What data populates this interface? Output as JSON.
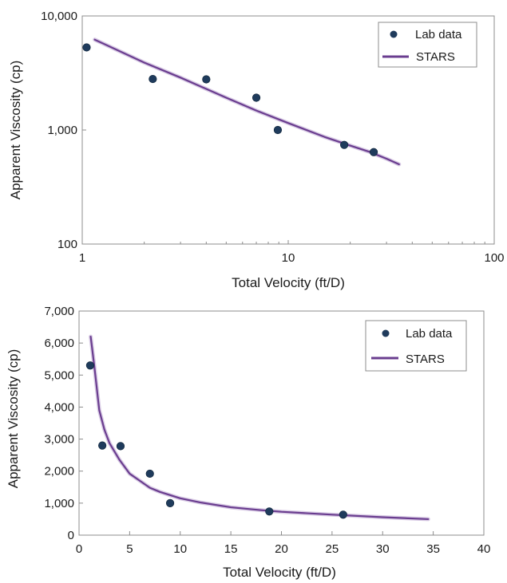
{
  "colors": {
    "axis": "#8c8c8c",
    "text": "#1a1a1a",
    "marker": "#1f3b5c",
    "line": "#6a3d8f"
  },
  "chart_data": [
    {
      "type": "scatter",
      "title": "",
      "xlabel": "Total Velocity (ft/D)",
      "ylabel": "Apparent Viscosity (cp)",
      "xscale": "log",
      "yscale": "log",
      "xlim": [
        1,
        100
      ],
      "ylim": [
        100,
        10000
      ],
      "xticks": [
        1,
        10,
        100
      ],
      "xtick_labels": [
        "1",
        "10",
        "100"
      ],
      "yticks": [
        100,
        1000,
        10000
      ],
      "ytick_labels": [
        "100",
        "1,000",
        "10,000"
      ],
      "grid": false,
      "legend_position": "top-right",
      "series": [
        {
          "name": "Lab data",
          "kind": "markers",
          "x": [
            1.05,
            2.2,
            4.0,
            7.0,
            8.9,
            18.7,
            26.0
          ],
          "y": [
            5300,
            2800,
            2780,
            1920,
            1000,
            740,
            640
          ]
        },
        {
          "name": "STARS",
          "kind": "line",
          "x": [
            1.15,
            2,
            3,
            5,
            7,
            10,
            15,
            20,
            25,
            30,
            34.5
          ],
          "y": [
            6200,
            3900,
            2880,
            1920,
            1480,
            1150,
            870,
            730,
            640,
            560,
            500
          ]
        }
      ]
    },
    {
      "type": "scatter",
      "title": "",
      "xlabel": "Total Velocity (ft/D)",
      "ylabel": "Apparent Viscosity (cp)",
      "xscale": "linear",
      "yscale": "linear",
      "xlim": [
        0,
        40
      ],
      "ylim": [
        0,
        7000
      ],
      "xticks": [
        0,
        5,
        10,
        15,
        20,
        25,
        30,
        35,
        40
      ],
      "xtick_labels": [
        "0",
        "5",
        "10",
        "15",
        "20",
        "25",
        "30",
        "35",
        "40"
      ],
      "yticks": [
        0,
        1000,
        2000,
        3000,
        4000,
        5000,
        6000,
        7000
      ],
      "ytick_labels": [
        "0",
        "1,000",
        "2,000",
        "3,000",
        "4,000",
        "5,000",
        "6,000",
        "7,000"
      ],
      "grid": false,
      "legend_position": "top-right",
      "series": [
        {
          "name": "Lab data",
          "kind": "markers",
          "x": [
            1.1,
            2.3,
            4.1,
            7.0,
            9.0,
            18.8,
            26.1
          ],
          "y": [
            5300,
            2800,
            2780,
            1920,
            1000,
            740,
            640
          ]
        },
        {
          "name": "STARS",
          "kind": "line",
          "x": [
            1.15,
            1.5,
            2,
            2.5,
            3,
            4,
            5,
            6,
            7,
            8,
            10,
            12,
            15,
            18,
            20,
            25,
            30,
            34.5
          ],
          "y": [
            6200,
            5300,
            3900,
            3300,
            2880,
            2350,
            1920,
            1700,
            1480,
            1350,
            1150,
            1020,
            870,
            780,
            730,
            640,
            560,
            500
          ]
        }
      ]
    }
  ]
}
